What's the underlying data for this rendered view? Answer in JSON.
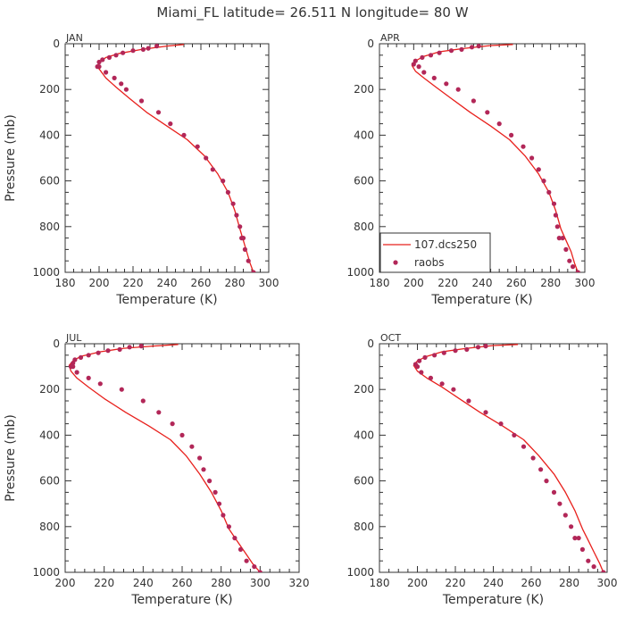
{
  "figure": {
    "title": "Miami_FL   latitude= 26.511 N longitude= 80 W"
  },
  "colors": {
    "model_line": "#e8201c",
    "raobs_marker": "#b22758",
    "axis": "#333333"
  },
  "chart_data": [
    {
      "type": "line",
      "panel": "JAN",
      "xlabel": "Temperature (K)",
      "ylabel": "Pressure (mb)",
      "xlim": [
        180,
        300
      ],
      "ylim": [
        1000,
        0
      ],
      "xticks": [
        180,
        200,
        220,
        240,
        260,
        280,
        300
      ],
      "yticks": [
        0,
        200,
        400,
        600,
        800,
        1000
      ],
      "legend": false,
      "series": [
        {
          "name": "107.dcs250",
          "style": "line",
          "x": [
            250,
            240,
            225,
            212,
            204,
            200,
            199,
            201,
            204,
            210,
            218,
            228,
            240,
            252,
            262,
            270,
            276,
            280,
            283,
            285,
            287,
            289,
            291
          ],
          "y": [
            3,
            10,
            25,
            42,
            60,
            80,
            100,
            120,
            150,
            190,
            240,
            300,
            360,
            420,
            490,
            570,
            650,
            730,
            810,
            860,
            910,
            960,
            1000
          ]
        },
        {
          "name": "raobs",
          "style": "scatter",
          "x": [
            234,
            229,
            226,
            220,
            214,
            210,
            206,
            202,
            200,
            199,
            200,
            204,
            209,
            213,
            216,
            225,
            235,
            242,
            250,
            258,
            263,
            267,
            273,
            276,
            279,
            281,
            283,
            284,
            285,
            286,
            288,
            291
          ],
          "y": [
            10,
            20,
            25,
            30,
            40,
            50,
            60,
            70,
            80,
            100,
            100,
            125,
            150,
            175,
            200,
            250,
            300,
            350,
            400,
            450,
            500,
            550,
            600,
            650,
            700,
            750,
            800,
            850,
            850,
            900,
            950,
            1000
          ]
        }
      ]
    },
    {
      "type": "line",
      "panel": "APR",
      "xlabel": "Temperature (K)",
      "ylabel": "",
      "xlim": [
        180,
        300
      ],
      "ylim": [
        1000,
        0
      ],
      "xticks": [
        180,
        200,
        220,
        240,
        260,
        280,
        300
      ],
      "yticks": [
        0,
        200,
        400,
        600,
        800,
        1000
      ],
      "legend": true,
      "series": [
        {
          "name": "107.dcs250",
          "style": "line",
          "x": [
            258,
            245,
            230,
            215,
            206,
            201,
            199,
            201,
            206,
            213,
            222,
            233,
            245,
            256,
            265,
            273,
            279,
            283,
            286,
            289,
            292,
            294,
            296
          ],
          "y": [
            3,
            8,
            20,
            35,
            55,
            75,
            95,
            120,
            150,
            190,
            240,
            300,
            360,
            420,
            490,
            570,
            650,
            730,
            810,
            860,
            910,
            960,
            1000
          ]
        },
        {
          "name": "raobs",
          "style": "scatter",
          "x": [
            238,
            234,
            228,
            222,
            215,
            210,
            205,
            201,
            200,
            203,
            206,
            212,
            219,
            226,
            235,
            243,
            250,
            257,
            264,
            269,
            273,
            276,
            279,
            282,
            283,
            284,
            285,
            287,
            289,
            291,
            293,
            296
          ],
          "y": [
            10,
            15,
            25,
            30,
            40,
            50,
            60,
            75,
            90,
            100,
            125,
            150,
            175,
            200,
            250,
            300,
            350,
            400,
            450,
            500,
            550,
            600,
            650,
            700,
            750,
            800,
            850,
            850,
            900,
            950,
            975,
            1000
          ]
        }
      ]
    },
    {
      "type": "line",
      "panel": "JUL",
      "xlabel": "Temperature (K)",
      "ylabel": "Pressure (mb)",
      "xlim": [
        200,
        320
      ],
      "ylim": [
        1000,
        0
      ],
      "xticks": [
        200,
        220,
        240,
        260,
        280,
        300,
        320
      ],
      "yticks": [
        0,
        200,
        400,
        600,
        800,
        1000
      ],
      "legend": false,
      "series": [
        {
          "name": "107.dcs250",
          "style": "line",
          "x": [
            258,
            245,
            230,
            218,
            208,
            204,
            202,
            203,
            206,
            212,
            220,
            231,
            243,
            254,
            262,
            269,
            275,
            280,
            284,
            288,
            292,
            296,
            300
          ],
          "y": [
            3,
            10,
            20,
            35,
            55,
            75,
            95,
            120,
            150,
            190,
            240,
            300,
            360,
            420,
            490,
            570,
            650,
            730,
            810,
            860,
            910,
            960,
            1000
          ]
        },
        {
          "name": "raobs",
          "style": "scatter",
          "x": [
            239,
            233,
            228,
            222,
            217,
            212,
            208,
            205,
            204,
            203,
            204,
            206,
            212,
            218,
            229,
            240,
            248,
            255,
            260,
            265,
            269,
            271,
            274,
            277,
            279,
            281,
            284,
            287,
            290,
            293,
            297,
            300
          ],
          "y": [
            10,
            15,
            25,
            30,
            40,
            50,
            60,
            70,
            85,
            100,
            100,
            125,
            150,
            175,
            200,
            250,
            300,
            350,
            400,
            450,
            500,
            550,
            600,
            650,
            700,
            750,
            800,
            850,
            900,
            950,
            975,
            1000
          ]
        }
      ]
    },
    {
      "type": "line",
      "panel": "OCT",
      "xlabel": "Temperature (K)",
      "ylabel": "",
      "xlim": [
        180,
        300
      ],
      "ylim": [
        1000,
        0
      ],
      "xticks": [
        180,
        200,
        220,
        240,
        260,
        280,
        300
      ],
      "yticks": [
        0,
        200,
        400,
        600,
        800,
        1000
      ],
      "legend": false,
      "series": [
        {
          "name": "107.dcs250",
          "style": "line",
          "x": [
            253,
            240,
            226,
            213,
            205,
            200,
            198,
            200,
            205,
            213,
            222,
            233,
            245,
            256,
            264,
            272,
            278,
            283,
            287,
            290,
            293,
            296,
            298
          ],
          "y": [
            3,
            8,
            20,
            35,
            55,
            75,
            95,
            120,
            150,
            190,
            240,
            300,
            360,
            420,
            490,
            570,
            650,
            730,
            810,
            860,
            910,
            960,
            1000
          ]
        },
        {
          "name": "raobs",
          "style": "scatter",
          "x": [
            236,
            232,
            226,
            220,
            214,
            209,
            204,
            201,
            199,
            200,
            202,
            207,
            213,
            219,
            227,
            236,
            244,
            251,
            256,
            261,
            265,
            268,
            272,
            275,
            278,
            281,
            283,
            285,
            287,
            290,
            293,
            298
          ],
          "y": [
            10,
            15,
            25,
            30,
            40,
            50,
            60,
            75,
            90,
            100,
            125,
            150,
            175,
            200,
            250,
            300,
            350,
            400,
            450,
            500,
            550,
            600,
            650,
            700,
            750,
            800,
            850,
            850,
            900,
            950,
            975,
            1000
          ]
        }
      ]
    }
  ]
}
